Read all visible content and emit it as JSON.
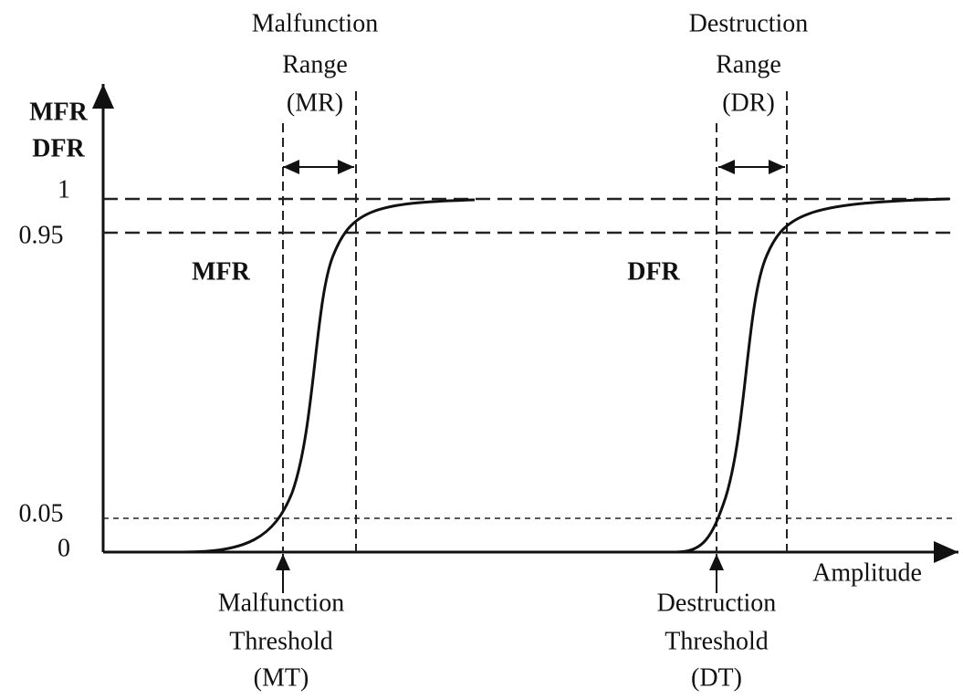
{
  "top_labels": [
    [
      "Malfunction",
      "Range",
      "(MR)"
    ],
    [
      "Destruction",
      "Range",
      "(DR)"
    ]
  ],
  "y_axis_label": [
    "MFR",
    "DFR"
  ],
  "y_ticks": [
    "1",
    "0.95",
    "0.05",
    "0"
  ],
  "curve_labels": [
    "MFR",
    "DFR"
  ],
  "x_axis_label": "Amplitude",
  "bottom_labels": [
    [
      "Malfunction",
      "Threshold",
      "(MT)"
    ],
    [
      "Destruction",
      "Threshold",
      "(DT)"
    ]
  ]
}
